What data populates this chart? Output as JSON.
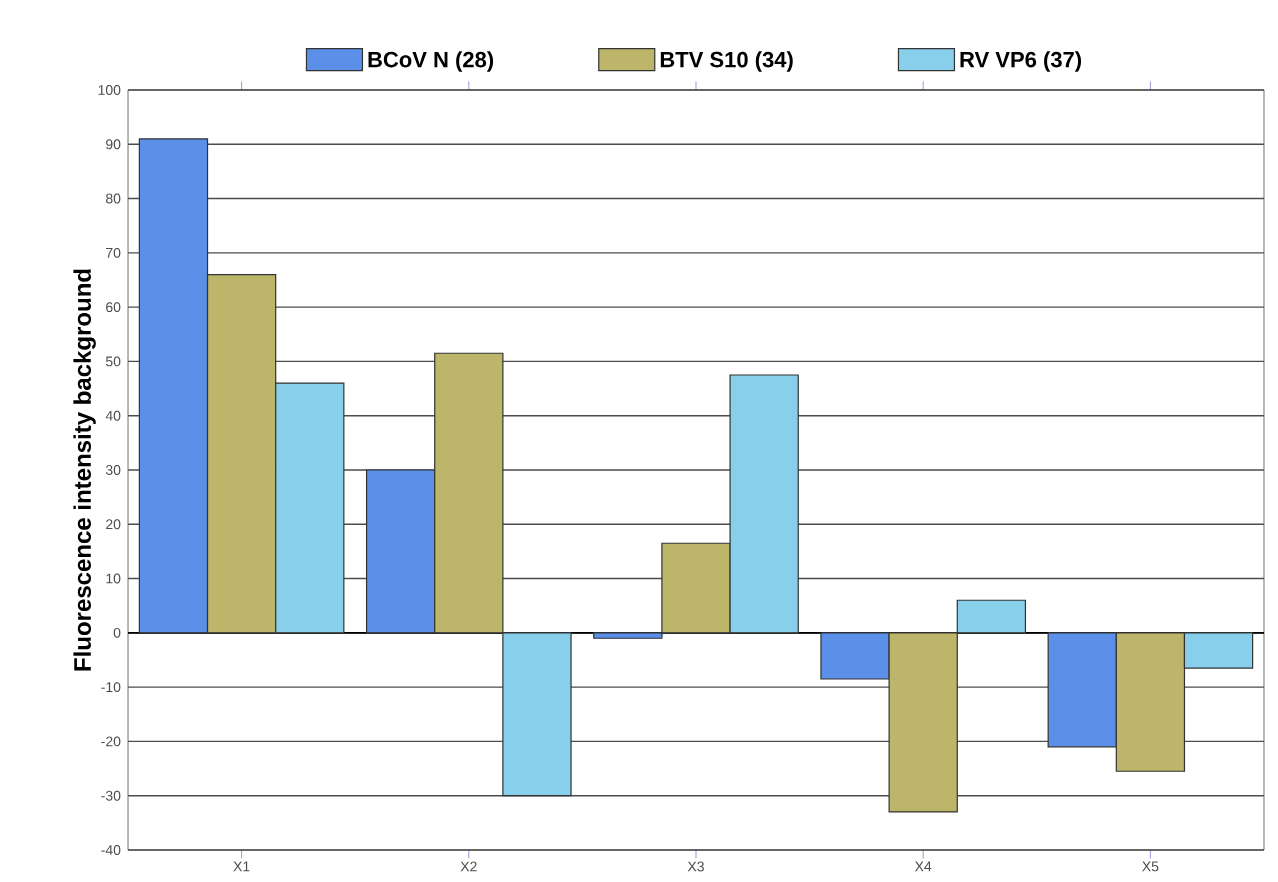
{
  "chart_data": {
    "type": "bar",
    "ylabel": "**Fluorescence intensity background**",
    "categories": [
      "X1",
      "X2",
      "X3",
      "X4",
      "X5"
    ],
    "series": [
      {
        "name": "**BCoV N (28)**",
        "color": "#5b8fe8",
        "values": [
          91,
          30,
          -1,
          -8.5,
          -21
        ]
      },
      {
        "name": "**BTV S10 (34)**",
        "color": "#bdb66a",
        "values": [
          66,
          51.5,
          16.5,
          -33,
          -25.5
        ]
      },
      {
        "name": "**RV VP6 (37)**",
        "color": "#87cfea",
        "values": [
          46,
          -30,
          47.5,
          6,
          -6.5
        ]
      }
    ],
    "ylim": [
      -40,
      100
    ],
    "yticks": [
      -40,
      -30,
      -20,
      -10,
      0,
      10,
      20,
      30,
      40,
      50,
      60,
      70,
      80,
      90,
      100
    ],
    "grid": "y",
    "legend": "top"
  }
}
